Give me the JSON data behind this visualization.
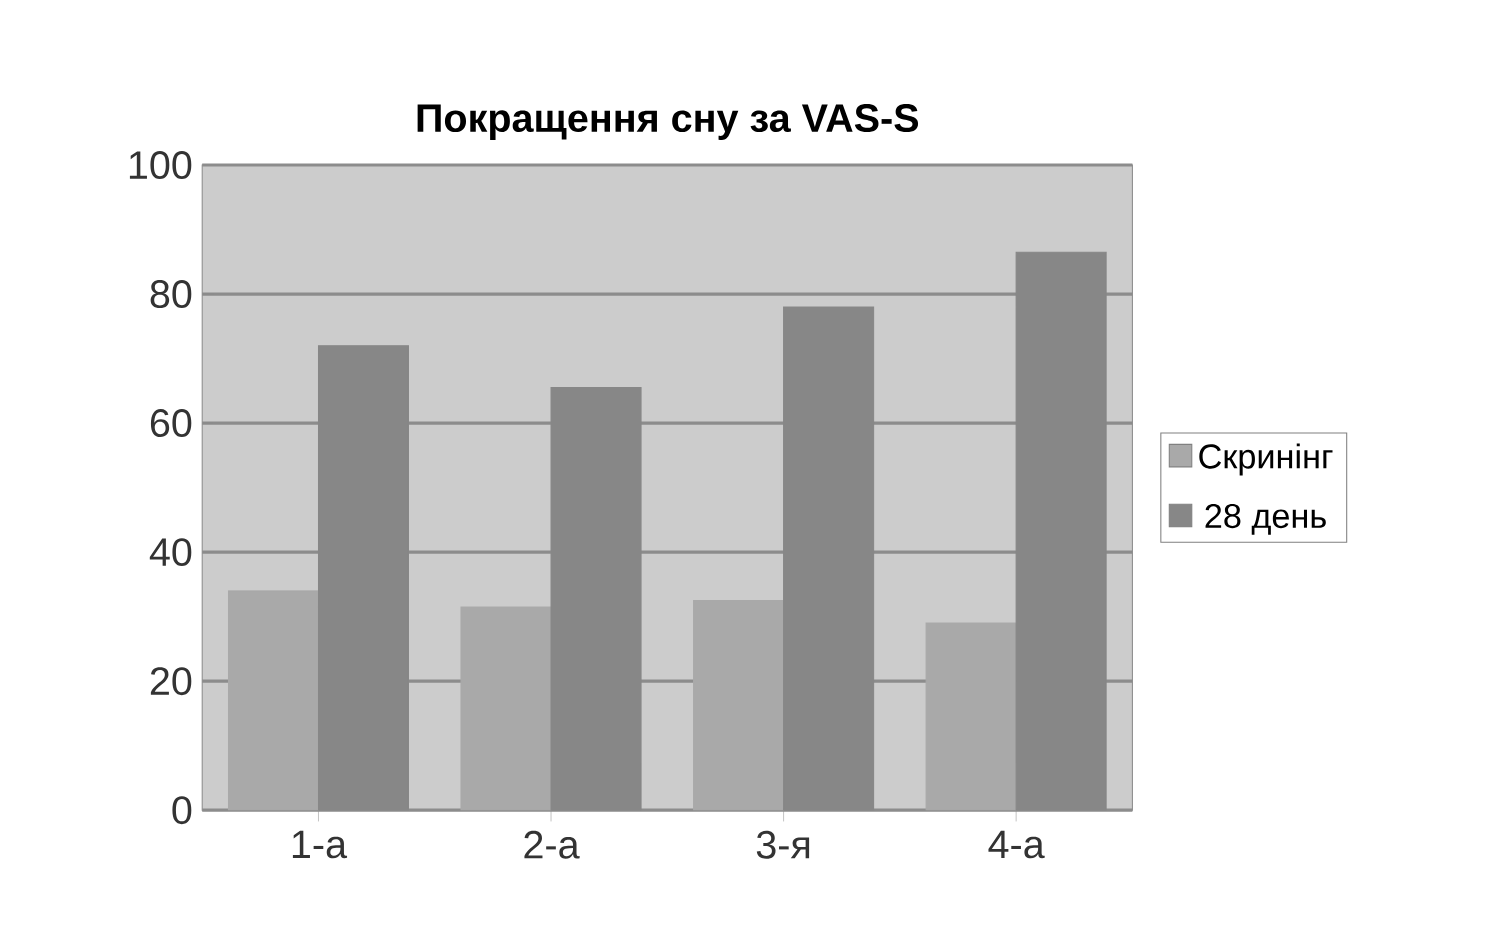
{
  "chart_data": {
    "type": "bar",
    "title": "Покращення сну за VAS-S",
    "categories": [
      "1-а",
      "2-а",
      "3-я",
      "4-а"
    ],
    "series": [
      {
        "name": "Скринінг",
        "color": "#a9a9a9",
        "values": [
          34,
          31.5,
          32.5,
          29
        ]
      },
      {
        "name": "28 день",
        "color": "#878787",
        "values": [
          72,
          65.5,
          78,
          86.5
        ]
      }
    ],
    "ylim": [
      0,
      100
    ],
    "yticks": [
      0,
      20,
      40,
      60,
      80,
      100
    ],
    "grid": "y",
    "legend": "right"
  }
}
